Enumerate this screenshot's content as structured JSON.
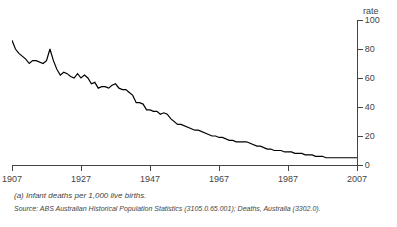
{
  "chart_data": {
    "type": "line",
    "ylabel": "rate",
    "annotations": [
      "(a) Infant deaths per 1,000 live births.",
      "Source: ABS Australian Historical Population Statistics (3105.0.65.001); Deaths, Australia (3302.0)."
    ],
    "x": [
      1907,
      1908,
      1909,
      1910,
      1911,
      1912,
      1913,
      1914,
      1915,
      1916,
      1917,
      1918,
      1919,
      1920,
      1921,
      1922,
      1923,
      1924,
      1925,
      1926,
      1927,
      1928,
      1929,
      1930,
      1931,
      1932,
      1933,
      1934,
      1935,
      1936,
      1937,
      1938,
      1939,
      1940,
      1941,
      1942,
      1943,
      1944,
      1945,
      1946,
      1947,
      1948,
      1949,
      1950,
      1951,
      1952,
      1953,
      1954,
      1955,
      1956,
      1957,
      1958,
      1959,
      1960,
      1961,
      1962,
      1963,
      1964,
      1965,
      1966,
      1967,
      1968,
      1969,
      1970,
      1971,
      1972,
      1973,
      1974,
      1975,
      1976,
      1977,
      1978,
      1979,
      1980,
      1981,
      1982,
      1983,
      1984,
      1985,
      1986,
      1987,
      1988,
      1989,
      1990,
      1991,
      1992,
      1993,
      1994,
      1995,
      1996,
      1997,
      1998,
      1999,
      2000,
      2001,
      2002,
      2003,
      2004,
      2005,
      2006,
      2007
    ],
    "values": [
      86,
      80,
      77,
      75,
      73,
      70,
      72,
      72,
      71,
      70,
      72,
      80,
      72,
      66,
      62,
      64,
      63,
      61,
      60,
      63,
      60,
      62,
      60,
      56,
      57,
      53,
      54,
      54,
      53,
      55,
      56,
      53,
      52,
      52,
      50,
      48,
      43,
      43,
      42,
      38,
      38,
      37,
      37,
      35,
      36,
      35,
      32,
      30,
      28,
      28,
      27,
      26,
      25,
      24,
      24,
      23,
      22,
      21,
      20,
      20,
      19,
      19,
      18,
      17,
      17,
      16,
      16,
      16,
      16,
      15,
      14,
      13,
      13,
      12,
      11,
      11,
      10,
      10,
      10,
      9,
      9,
      9,
      8,
      8,
      8,
      7,
      7,
      7,
      6,
      6,
      6,
      5,
      5,
      5,
      5,
      5,
      5,
      5,
      5,
      5,
      5
    ],
    "color": "#000000",
    "xlim": [
      1907,
      2007
    ],
    "ylim": [
      0,
      100
    ],
    "xticks": [
      1907,
      1927,
      1947,
      1967,
      1987,
      2007
    ],
    "yticks": [
      0,
      20,
      40,
      60,
      80,
      100
    ],
    "grid": false
  }
}
